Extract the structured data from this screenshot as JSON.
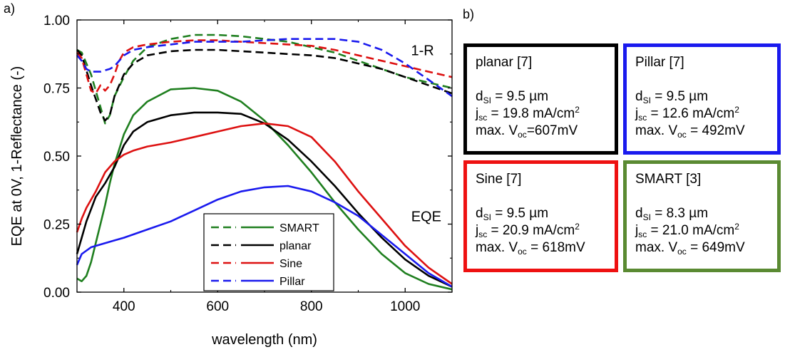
{
  "panel_a_label": "a)",
  "panel_b_label": "b)",
  "chart_data": {
    "type": "line",
    "title": "",
    "xlabel": "wavelength (nm)",
    "ylabel": "EQE at 0V, 1-Reflectance (-)",
    "xlim": [
      300,
      1100
    ],
    "ylim": [
      0.0,
      1.0
    ],
    "xticks": [
      400,
      600,
      800,
      1000
    ],
    "yticks": [
      "0.00",
      "0.25",
      "0.50",
      "0.75",
      "1.00"
    ],
    "annotations": [
      {
        "text": "1-R",
        "x": 1037,
        "y": 0.87
      },
      {
        "text": "EQE",
        "x": 1045,
        "y": 0.26
      }
    ],
    "legend": [
      "SMART",
      "planar",
      "Sine",
      "Pillar"
    ],
    "legend_position": "bottom-center",
    "series": [
      {
        "name": "SMART",
        "kind": "1-R",
        "color": "#1f7f1f",
        "dash": true,
        "x": [
          300,
          310,
          330,
          350,
          360,
          370,
          380,
          400,
          420,
          450,
          500,
          550,
          600,
          650,
          700,
          750,
          800,
          850,
          900,
          950,
          1000,
          1050,
          1100
        ],
        "y": [
          0.89,
          0.88,
          0.8,
          0.68,
          0.62,
          0.65,
          0.72,
          0.79,
          0.85,
          0.9,
          0.93,
          0.945,
          0.945,
          0.94,
          0.93,
          0.92,
          0.9,
          0.88,
          0.85,
          0.82,
          0.79,
          0.77,
          0.75
        ]
      },
      {
        "name": "planar",
        "kind": "1-R",
        "color": "#000000",
        "dash": true,
        "x": [
          300,
          310,
          330,
          350,
          360,
          370,
          380,
          400,
          420,
          450,
          500,
          550,
          600,
          650,
          700,
          750,
          800,
          850,
          900,
          950,
          1000,
          1050,
          1100
        ],
        "y": [
          0.89,
          0.87,
          0.76,
          0.66,
          0.63,
          0.65,
          0.72,
          0.8,
          0.84,
          0.87,
          0.885,
          0.89,
          0.89,
          0.885,
          0.88,
          0.875,
          0.87,
          0.86,
          0.84,
          0.82,
          0.79,
          0.76,
          0.73
        ]
      },
      {
        "name": "Sine",
        "kind": "1-R",
        "color": "#dd1111",
        "dash": true,
        "x": [
          300,
          310,
          320,
          330,
          340,
          350,
          360,
          370,
          380,
          390,
          400,
          420,
          450,
          500,
          550,
          600,
          650,
          700,
          750,
          800,
          850,
          900,
          950,
          1000,
          1050,
          1100
        ],
        "y": [
          0.88,
          0.86,
          0.8,
          0.74,
          0.73,
          0.76,
          0.74,
          0.76,
          0.8,
          0.85,
          0.88,
          0.9,
          0.91,
          0.92,
          0.925,
          0.925,
          0.92,
          0.915,
          0.91,
          0.905,
          0.89,
          0.87,
          0.85,
          0.83,
          0.81,
          0.79
        ]
      },
      {
        "name": "Pillar",
        "kind": "1-R",
        "color": "#1a1aee",
        "dash": true,
        "x": [
          300,
          310,
          320,
          330,
          350,
          370,
          380,
          400,
          420,
          450,
          500,
          550,
          600,
          650,
          700,
          750,
          800,
          850,
          900,
          950,
          1000,
          1050,
          1100
        ],
        "y": [
          0.87,
          0.85,
          0.82,
          0.81,
          0.81,
          0.82,
          0.83,
          0.87,
          0.89,
          0.9,
          0.91,
          0.92,
          0.92,
          0.92,
          0.925,
          0.93,
          0.93,
          0.93,
          0.92,
          0.89,
          0.84,
          0.78,
          0.72
        ]
      },
      {
        "name": "SMART",
        "kind": "EQE",
        "color": "#1f7f1f",
        "dash": false,
        "x": [
          300,
          310,
          320,
          330,
          340,
          350,
          360,
          370,
          380,
          400,
          420,
          450,
          500,
          550,
          600,
          650,
          700,
          750,
          800,
          850,
          900,
          950,
          1000,
          1050,
          1100
        ],
        "y": [
          0.05,
          0.04,
          0.06,
          0.11,
          0.18,
          0.25,
          0.32,
          0.4,
          0.47,
          0.58,
          0.65,
          0.7,
          0.745,
          0.75,
          0.74,
          0.7,
          0.63,
          0.54,
          0.44,
          0.33,
          0.23,
          0.14,
          0.07,
          0.03,
          0.01
        ]
      },
      {
        "name": "planar",
        "kind": "EQE",
        "color": "#000000",
        "dash": false,
        "x": [
          300,
          310,
          320,
          340,
          360,
          380,
          400,
          420,
          450,
          500,
          550,
          600,
          650,
          700,
          750,
          800,
          850,
          900,
          950,
          1000,
          1050,
          1100
        ],
        "y": [
          0.14,
          0.2,
          0.26,
          0.35,
          0.4,
          0.46,
          0.54,
          0.59,
          0.625,
          0.65,
          0.66,
          0.66,
          0.655,
          0.62,
          0.56,
          0.48,
          0.39,
          0.29,
          0.2,
          0.12,
          0.06,
          0.02
        ]
      },
      {
        "name": "Sine",
        "kind": "EQE",
        "color": "#dd1111",
        "dash": false,
        "x": [
          300,
          310,
          320,
          340,
          360,
          380,
          400,
          420,
          450,
          500,
          550,
          600,
          650,
          700,
          750,
          800,
          850,
          900,
          950,
          1000,
          1050,
          1100
        ],
        "y": [
          0.22,
          0.27,
          0.31,
          0.37,
          0.44,
          0.48,
          0.505,
          0.52,
          0.535,
          0.55,
          0.57,
          0.59,
          0.61,
          0.62,
          0.61,
          0.57,
          0.48,
          0.37,
          0.27,
          0.17,
          0.09,
          0.03
        ]
      },
      {
        "name": "Pillar",
        "kind": "EQE",
        "color": "#1a1aee",
        "dash": false,
        "x": [
          300,
          310,
          330,
          350,
          380,
          400,
          450,
          500,
          550,
          600,
          650,
          700,
          750,
          800,
          850,
          900,
          950,
          1000,
          1050,
          1100
        ],
        "y": [
          0.1,
          0.14,
          0.165,
          0.175,
          0.19,
          0.2,
          0.23,
          0.26,
          0.3,
          0.34,
          0.37,
          0.385,
          0.39,
          0.37,
          0.33,
          0.28,
          0.21,
          0.14,
          0.07,
          0.02
        ]
      }
    ]
  },
  "info_boxes": [
    {
      "title": "planar [7]",
      "color": "#000000",
      "d_si": "9.5 µm",
      "j_sc": "19.8 mA/cm",
      "v_oc": "607mV"
    },
    {
      "title": "Pillar [7]",
      "color": "#1a1aee",
      "d_si": "9.5 µm",
      "j_sc": "12.6 mA/cm",
      "v_oc": "492mV"
    },
    {
      "title": "Sine [7]",
      "color": "#ee1111",
      "d_si": "9.5 µm",
      "j_sc": "20.9 mA/cm",
      "v_oc": "618mV"
    },
    {
      "title": "SMART [3]",
      "color": "#5a8a32",
      "d_si": "8.3 µm",
      "j_sc": "21.0 mA/cm",
      "v_oc": "649mV"
    }
  ],
  "box_labels": {
    "d": "d",
    "si": "SI",
    "j": "j",
    "sc": "sc",
    "exp": "2",
    "vmax": "max. V",
    "oc": "oc",
    "eq": " = "
  }
}
